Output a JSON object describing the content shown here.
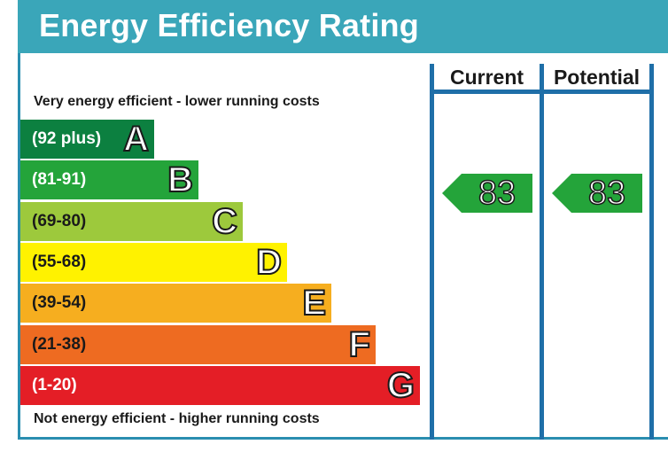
{
  "title": "Energy Efficiency Rating",
  "top_caption": "Very energy efficient - lower running costs",
  "bottom_caption": "Not energy efficient - higher running costs",
  "columns": {
    "current": "Current",
    "potential": "Potential"
  },
  "chart_data": {
    "type": "bar",
    "title": "Energy Efficiency Rating",
    "categories": [
      "A",
      "B",
      "C",
      "D",
      "E",
      "F",
      "G"
    ],
    "ranges": [
      "(92 plus)",
      "(81-91)",
      "(69-80)",
      "(55-68)",
      "(39-54)",
      "(21-38)",
      "(1-20)"
    ],
    "colors": [
      "#0c8040",
      "#24a43a",
      "#9dc93c",
      "#fff200",
      "#f6ae1f",
      "#ee6b21",
      "#e41e26"
    ],
    "range_text_colors": [
      "#ffffff",
      "#ffffff",
      "#1a1a1a",
      "#1a1a1a",
      "#1a1a1a",
      "#1a1a1a",
      "#ffffff"
    ],
    "current": {
      "value": 83,
      "band": "B",
      "color": "#24a43a"
    },
    "potential": {
      "value": 83,
      "band": "B",
      "color": "#24a43a"
    }
  }
}
